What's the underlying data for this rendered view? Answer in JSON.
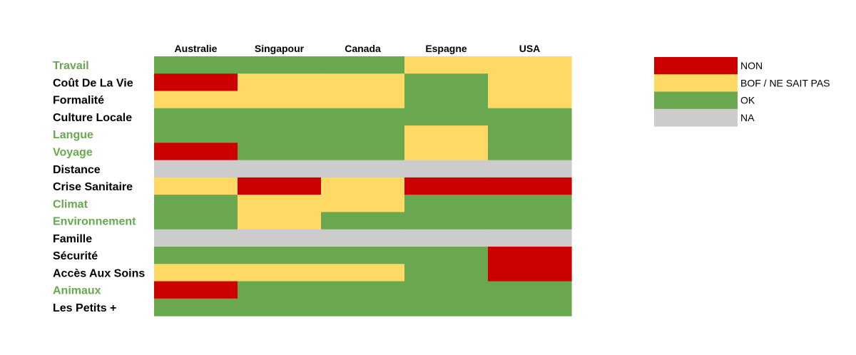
{
  "chart_data": {
    "type": "heatmap",
    "columns": [
      "Australie",
      "Singapour",
      "Canada",
      "Espagne",
      "USA"
    ],
    "rows": [
      {
        "label": "Travail",
        "highlight": true,
        "values": [
          "OK",
          "OK",
          "OK",
          "BOF / NE SAIT PAS",
          "BOF / NE SAIT PAS"
        ]
      },
      {
        "label": "Coût De La Vie",
        "highlight": false,
        "values": [
          "NON",
          "BOF / NE SAIT PAS",
          "BOF / NE SAIT PAS",
          "OK",
          "BOF / NE SAIT PAS"
        ]
      },
      {
        "label": "Formalité",
        "highlight": false,
        "values": [
          "BOF / NE SAIT PAS",
          "BOF / NE SAIT PAS",
          "BOF / NE SAIT PAS",
          "OK",
          "BOF / NE SAIT PAS"
        ]
      },
      {
        "label": "Culture Locale",
        "highlight": false,
        "values": [
          "OK",
          "OK",
          "OK",
          "OK",
          "OK"
        ]
      },
      {
        "label": "Langue",
        "highlight": true,
        "values": [
          "OK",
          "OK",
          "OK",
          "BOF / NE SAIT PAS",
          "OK"
        ]
      },
      {
        "label": "Voyage",
        "highlight": true,
        "values": [
          "NON",
          "OK",
          "OK",
          "BOF / NE SAIT PAS",
          "OK"
        ]
      },
      {
        "label": "Distance",
        "highlight": false,
        "values": [
          "NA",
          "NA",
          "NA",
          "NA",
          "NA"
        ]
      },
      {
        "label": "Crise Sanitaire",
        "highlight": false,
        "values": [
          "BOF / NE SAIT PAS",
          "NON",
          "BOF / NE SAIT PAS",
          "NON",
          "NON"
        ]
      },
      {
        "label": "Climat",
        "highlight": true,
        "values": [
          "OK",
          "BOF / NE SAIT PAS",
          "BOF / NE SAIT PAS",
          "OK",
          "OK"
        ]
      },
      {
        "label": "Environnement",
        "highlight": true,
        "values": [
          "OK",
          "BOF / NE SAIT PAS",
          "OK",
          "OK",
          "OK"
        ]
      },
      {
        "label": "Famille",
        "highlight": false,
        "values": [
          "NA",
          "NA",
          "NA",
          "NA",
          "NA"
        ]
      },
      {
        "label": "Sécurité",
        "highlight": false,
        "values": [
          "OK",
          "OK",
          "OK",
          "OK",
          "NON"
        ]
      },
      {
        "label": "Accès Aux Soins",
        "highlight": false,
        "values": [
          "BOF / NE SAIT PAS",
          "BOF / NE SAIT PAS",
          "BOF / NE SAIT PAS",
          "OK",
          "NON"
        ]
      },
      {
        "label": "Animaux",
        "highlight": true,
        "values": [
          "NON",
          "OK",
          "OK",
          "OK",
          "OK"
        ]
      },
      {
        "label": "Les Petits +",
        "highlight": false,
        "values": [
          "OK",
          "OK",
          "OK",
          "OK",
          "OK"
        ]
      }
    ],
    "legend": [
      {
        "label": "NON",
        "color": "#cc0000"
      },
      {
        "label": "BOF / NE SAIT PAS",
        "color": "#ffd966"
      },
      {
        "label": "OK",
        "color": "#6aa84f"
      },
      {
        "label": "NA",
        "color": "#cccccc"
      }
    ],
    "highlight_label_color": "#6aa84f",
    "default_label_color": "#000000",
    "legend_placement": "top-right"
  }
}
